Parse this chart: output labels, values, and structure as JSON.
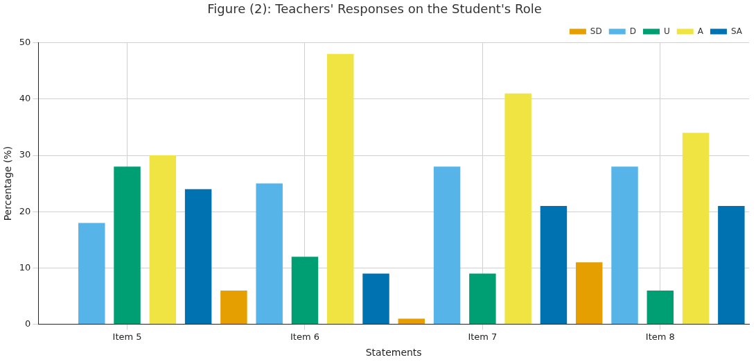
{
  "chart_data": {
    "type": "bar",
    "title": "Figure (2): Teachers' Responses on the Student's Role",
    "xlabel": "Statements",
    "ylabel": "Percentage (%)",
    "categories": [
      "Item 5",
      "Item 6",
      "Item 7",
      "Item 8"
    ],
    "series": [
      {
        "name": "SD",
        "color": "#e69f00",
        "values": [
          0,
          6,
          1,
          11
        ]
      },
      {
        "name": "D",
        "color": "#56b4e9",
        "values": [
          18,
          25,
          28,
          28
        ]
      },
      {
        "name": "U",
        "color": "#009e73",
        "values": [
          28,
          12,
          9,
          6
        ]
      },
      {
        "name": "A",
        "color": "#f0e442",
        "values": [
          30,
          48,
          41,
          34
        ]
      },
      {
        "name": "SA",
        "color": "#0072b2",
        "values": [
          24,
          9,
          21,
          21
        ]
      }
    ],
    "ylim": [
      0,
      50
    ],
    "yticks": [
      0,
      10,
      20,
      30,
      40,
      50
    ],
    "grid": true,
    "legend": "top right"
  }
}
